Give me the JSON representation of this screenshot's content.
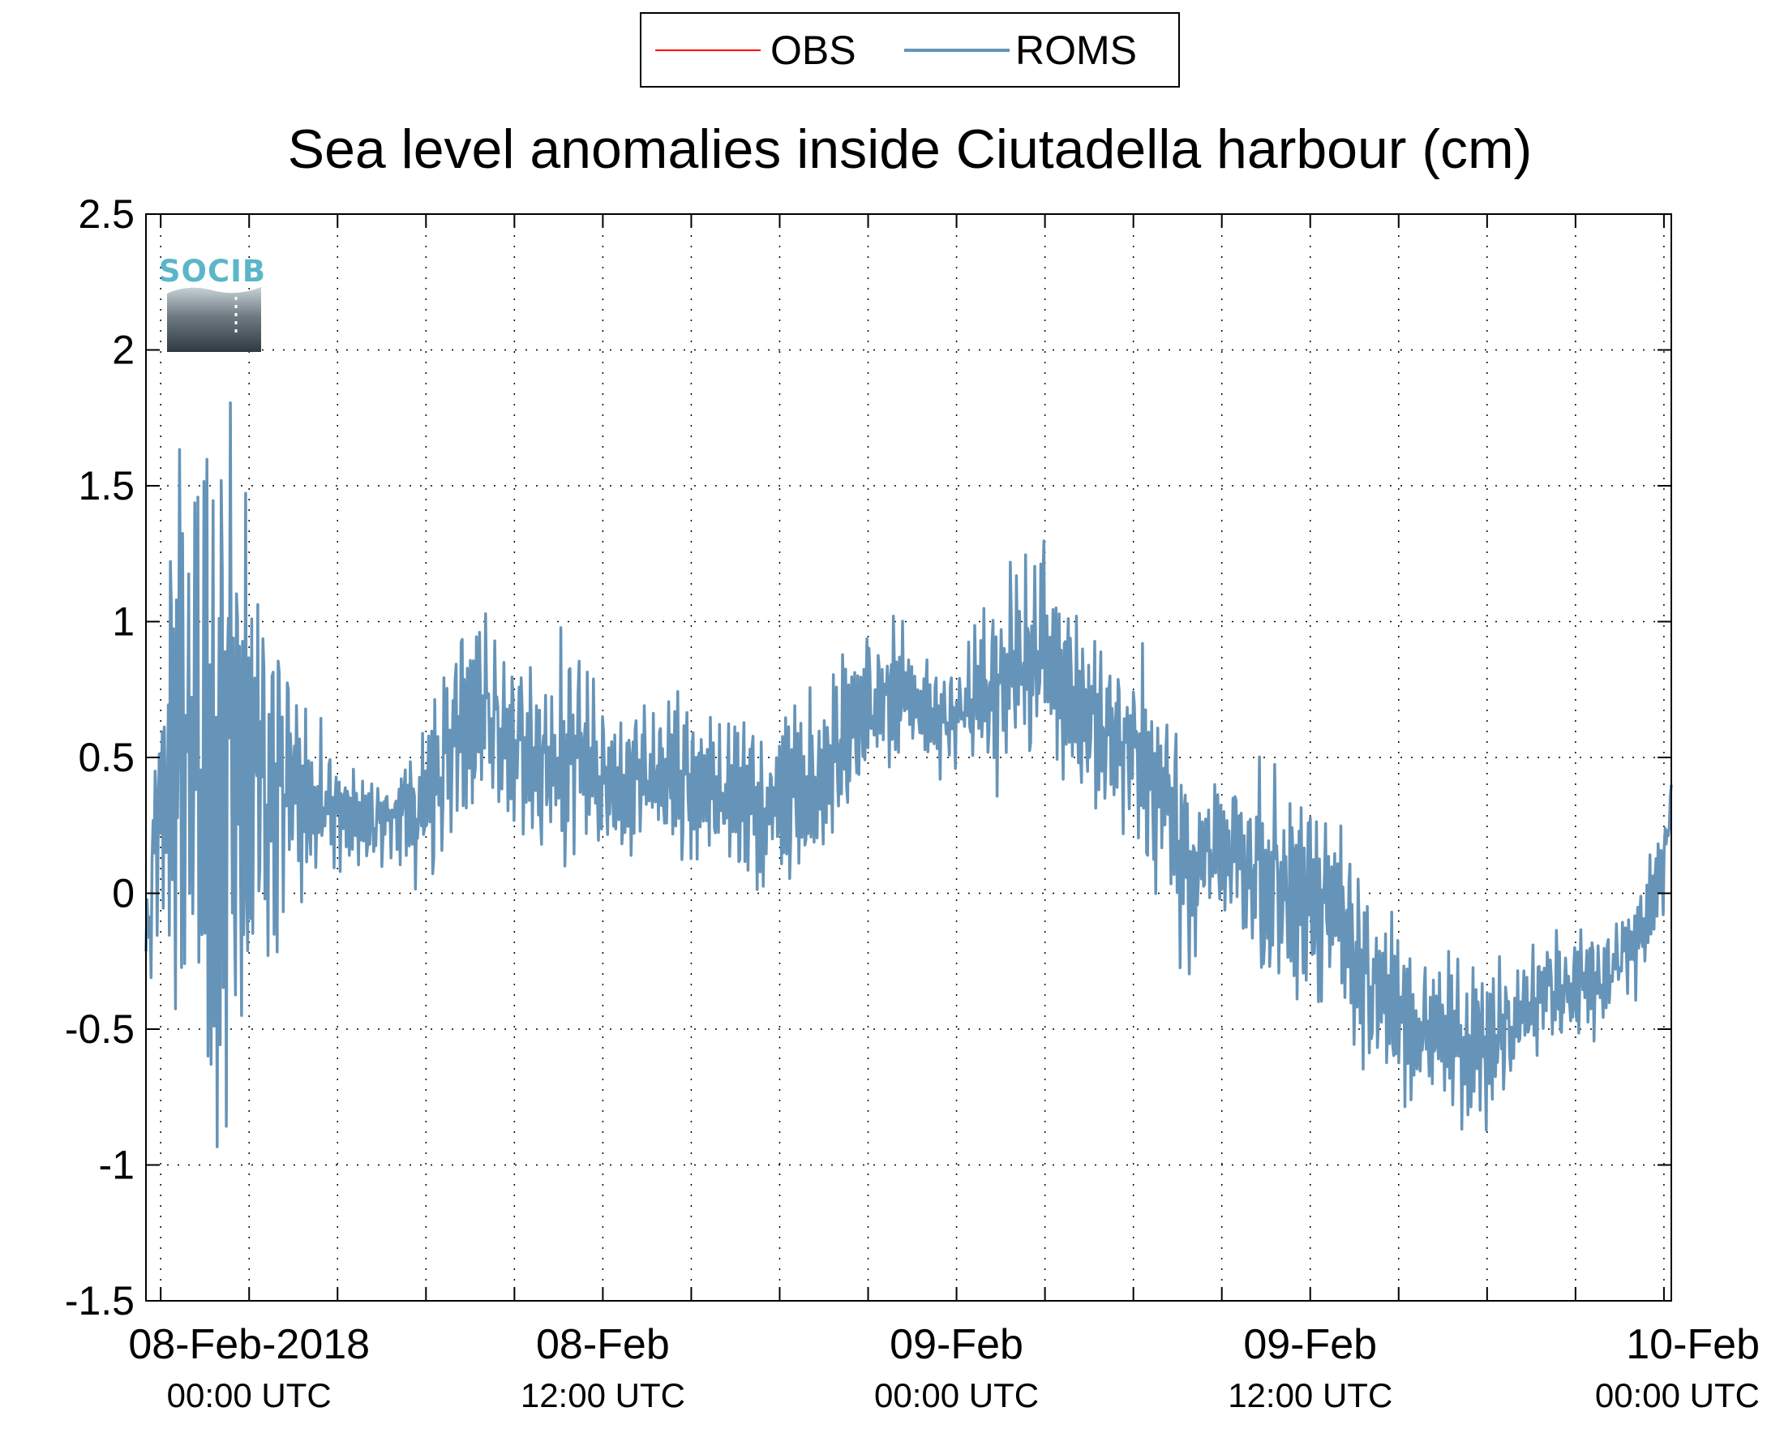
{
  "chart_data": {
    "type": "line",
    "title": "Sea level anomalies inside Ciutadella harbour (cm)",
    "xlabel": "",
    "ylabel": "",
    "ylim": [
      -1.5,
      2.5
    ],
    "y_ticks": [
      2.5,
      2,
      1.5,
      1,
      0.5,
      0,
      -0.5,
      -1,
      -1.5
    ],
    "y_tick_labels": [
      "2.5",
      "2",
      "1.5",
      "1",
      "0.5",
      "0",
      "-0.5",
      "-1",
      "-1.5"
    ],
    "x_unit": "hours since 08-Feb-2018 00:00 UTC",
    "xlim": [
      -3.5,
      48.25
    ],
    "x_minor_ticks_every": 3,
    "x_tick_labels": [
      {
        "x": 0,
        "line1": "08-Feb-2018",
        "line2": "00:00 UTC"
      },
      {
        "x": 12,
        "line1": "08-Feb",
        "line2": "12:00 UTC"
      },
      {
        "x": 24,
        "line1": "09-Feb",
        "line2": "00:00 UTC"
      },
      {
        "x": 36,
        "line1": "09-Feb",
        "line2": "12:00 UTC"
      },
      {
        "x": 48,
        "line1": "10-Feb",
        "line2": "00:00 UTC"
      }
    ],
    "grid": true,
    "legend_position": "top-center",
    "series": [
      {
        "name": "OBS",
        "color": "#ff0000",
        "values": []
      },
      {
        "name": "ROMS",
        "color": "#6694b8",
        "envelope": {
          "x": [
            -3.5,
            -3,
            -2,
            -1,
            0,
            1,
            2,
            3,
            4,
            5,
            6,
            7,
            8,
            9,
            10,
            11,
            12,
            13,
            14,
            15,
            16,
            17,
            18,
            19,
            20,
            21,
            22,
            23,
            24,
            25,
            26,
            27,
            28,
            29,
            30,
            31,
            32,
            33,
            34,
            35,
            36,
            37,
            38,
            39,
            40,
            41,
            42,
            43,
            44,
            45,
            46,
            47,
            48,
            48.25
          ],
          "mean": [
            -0.2,
            0.4,
            0.55,
            0.5,
            0.45,
            0.4,
            0.35,
            0.3,
            0.25,
            0.3,
            0.35,
            0.6,
            0.65,
            0.55,
            0.5,
            0.5,
            0.45,
            0.4,
            0.45,
            0.4,
            0.35,
            0.3,
            0.3,
            0.4,
            0.55,
            0.7,
            0.75,
            0.65,
            0.65,
            0.75,
            0.85,
            0.9,
            0.7,
            0.6,
            0.55,
            0.35,
            0.05,
            0.15,
            0.1,
            0.0,
            -0.05,
            -0.1,
            -0.35,
            -0.45,
            -0.5,
            -0.55,
            -0.55,
            -0.45,
            -0.35,
            -0.35,
            -0.3,
            -0.2,
            0.1,
            0.4
          ],
          "amp": [
            0.1,
            0.6,
            1.2,
            1.4,
            1.0,
            0.6,
            0.35,
            0.2,
            0.15,
            0.2,
            0.35,
            0.35,
            0.35,
            0.3,
            0.4,
            0.45,
            0.3,
            0.25,
            0.3,
            0.3,
            0.25,
            0.3,
            0.35,
            0.35,
            0.3,
            0.3,
            0.25,
            0.2,
            0.2,
            0.3,
            0.45,
            0.45,
            0.35,
            0.3,
            0.35,
            0.4,
            0.35,
            0.3,
            0.35,
            0.45,
            0.45,
            0.35,
            0.3,
            0.3,
            0.3,
            0.3,
            0.3,
            0.25,
            0.2,
            0.2,
            0.2,
            0.2,
            0.2,
            0.1
          ]
        }
      }
    ]
  },
  "logo": {
    "text": "SOCIB",
    "color": "#5ab6c8"
  }
}
